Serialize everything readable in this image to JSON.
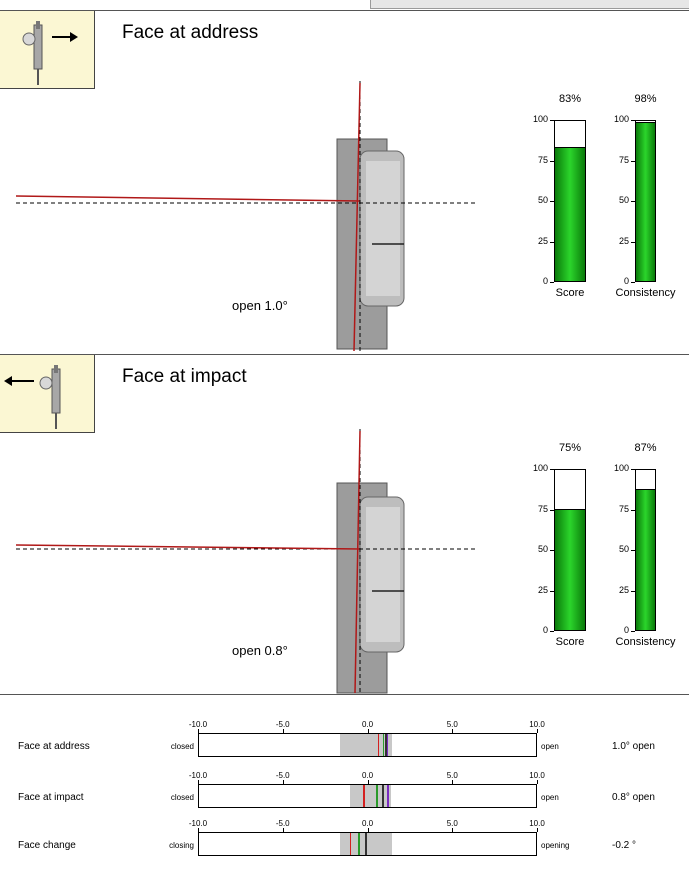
{
  "panels": [
    {
      "title": "Face at address",
      "angle_label": "open 1.0°",
      "icon": "putter-ball-arrow-right-icon",
      "bars": [
        {
          "caption": "Score",
          "percent_label": "83%",
          "value": 83
        },
        {
          "caption": "Consistency",
          "percent_label": "98%",
          "value": 98
        }
      ]
    },
    {
      "title": "Face at impact",
      "angle_label": "open 0.8°",
      "icon": "putter-ball-arrow-left-icon",
      "bars": [
        {
          "caption": "Score",
          "percent_label": "75%",
          "value": 75
        },
        {
          "caption": "Consistency",
          "percent_label": "87%",
          "value": 87
        }
      ]
    }
  ],
  "bar_ticks": [
    "100",
    "75",
    "50",
    "25",
    "0"
  ],
  "strip_ticks": [
    "-10.0",
    "-5.0",
    "0.0",
    "5.0",
    "10.0"
  ],
  "strips": [
    {
      "label": "Face at address",
      "left_end": "closed",
      "right_end": "open",
      "value_label": "1.0° open",
      "value": 1.0,
      "range": [
        -1.7,
        1.4
      ],
      "marks": [
        0.55,
        0.85,
        1.05
      ]
    },
    {
      "label": "Face at impact",
      "left_end": "closed",
      "right_end": "open",
      "value_label": "0.8° open",
      "value": 0.8,
      "range": [
        -1.1,
        1.3
      ],
      "marks": [
        -0.3,
        0.45,
        1.1
      ]
    },
    {
      "label": "Face change",
      "left_end": "closing",
      "right_end": "opening",
      "value_label": "-0.2 °",
      "value": -0.2,
      "range": [
        -1.7,
        1.4
      ],
      "marks": [
        -1.1,
        -0.6,
        -0.2
      ]
    }
  ],
  "colors": {
    "bar_fill": "#19b219",
    "face_line": "#b01818",
    "icon_bg": "#fbf7d3",
    "range_fill": "#c8c8c8"
  },
  "chart_data": [
    {
      "type": "bar",
      "title": "Face at address",
      "categories": [
        "Score",
        "Consistency"
      ],
      "values": [
        83,
        98
      ],
      "ylim": [
        0,
        100
      ]
    },
    {
      "type": "bar",
      "title": "Face at impact",
      "categories": [
        "Score",
        "Consistency"
      ],
      "values": [
        75,
        87
      ],
      "ylim": [
        0,
        100
      ]
    },
    {
      "type": "bar",
      "title": "",
      "categories": [
        "Face at address",
        "Face at impact",
        "Face change"
      ],
      "values": [
        1.0,
        0.8,
        -0.2
      ],
      "xlim": [
        -10,
        10
      ],
      "ticks": [
        -10,
        -5,
        0,
        5,
        10
      ]
    }
  ]
}
